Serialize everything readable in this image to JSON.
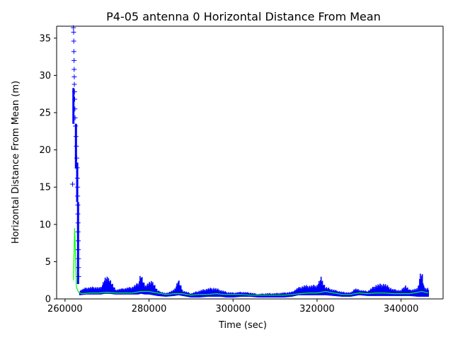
{
  "chart_data": {
    "type": "scatter",
    "title": "P4-05 antenna 0 Horizontal Distance From Mean",
    "xlabel": "Time (sec)",
    "ylabel": "Horizontal Distance From Mean (m)",
    "xlim": [
      258000,
      350000
    ],
    "ylim": [
      0,
      36.6
    ],
    "xticks": [
      260000,
      280000,
      300000,
      320000,
      340000
    ],
    "xtick_labels": [
      "260000",
      "280000",
      "300000",
      "320000",
      "340000"
    ],
    "yticks": [
      0,
      5,
      10,
      15,
      20,
      25,
      30,
      35
    ],
    "ytick_labels": [
      "0",
      "5",
      "10",
      "15",
      "20",
      "25",
      "30",
      "35"
    ],
    "grid": false,
    "series": [
      {
        "name": "Horizontal distance (blue + markers)",
        "color": "#0000ff",
        "marker": "+",
        "points": [
          [
            261800,
            15.4
          ],
          [
            262000,
            36.4
          ],
          [
            262050,
            35.8
          ],
          [
            262080,
            34.6
          ],
          [
            262100,
            33.2
          ],
          [
            262150,
            32.0
          ],
          [
            262180,
            30.8
          ],
          [
            262200,
            29.8
          ],
          [
            262220,
            28.8
          ],
          [
            262260,
            27.8
          ],
          [
            262300,
            26.8
          ],
          [
            262350,
            25.5
          ],
          [
            262400,
            24.3
          ],
          [
            262500,
            23.2
          ],
          [
            262600,
            21.8
          ],
          [
            262700,
            20.5
          ],
          [
            262800,
            18.9
          ],
          [
            262900,
            17.6
          ],
          [
            262950,
            16.2
          ],
          [
            263000,
            15.0
          ],
          [
            263000,
            13.8
          ],
          [
            263050,
            12.6
          ],
          [
            263050,
            11.4
          ],
          [
            263100,
            10.2
          ],
          [
            263100,
            9.0
          ],
          [
            263150,
            7.8
          ],
          [
            263150,
            6.6
          ],
          [
            263200,
            5.4
          ],
          [
            263200,
            4.2
          ],
          [
            263250,
            3.0
          ]
        ],
        "band": {
          "x": [
            263500,
            265000,
            267000,
            268500,
            269500,
            270500,
            272000,
            274000,
            276000,
            277500,
            278000,
            279000,
            280000,
            281000,
            282000,
            284000,
            286000,
            287000,
            288000,
            289000,
            290000,
            292000,
            294000,
            295500,
            297000,
            298500,
            300000,
            302000,
            304000,
            306000,
            308000,
            310000,
            312000,
            314000,
            315500,
            317000,
            318500,
            320000,
            321000,
            322000,
            324000,
            326000,
            328000,
            329000,
            330000,
            332000,
            334000,
            336000,
            338000,
            340000,
            341000,
            342000,
            344000,
            344500,
            345000,
            345500,
            346500
          ],
          "low": [
            0.5,
            0.6,
            0.6,
            0.6,
            0.7,
            0.7,
            0.6,
            0.6,
            0.6,
            0.6,
            0.7,
            0.6,
            0.6,
            0.5,
            0.4,
            0.3,
            0.4,
            0.5,
            0.4,
            0.3,
            0.2,
            0.2,
            0.3,
            0.3,
            0.3,
            0.2,
            0.2,
            0.3,
            0.3,
            0.2,
            0.2,
            0.2,
            0.2,
            0.3,
            0.5,
            0.5,
            0.5,
            0.5,
            0.5,
            0.5,
            0.4,
            0.3,
            0.3,
            0.4,
            0.5,
            0.4,
            0.4,
            0.4,
            0.4,
            0.4,
            0.4,
            0.4,
            0.3,
            0.3,
            0.3,
            0.3,
            0.3
          ],
          "high": [
            1.2,
            1.6,
            1.7,
            1.6,
            3.0,
            3.1,
            1.3,
            1.5,
            1.7,
            2.3,
            3.7,
            1.9,
            2.4,
            2.5,
            1.2,
            0.8,
            1.3,
            2.8,
            1.2,
            1.0,
            0.8,
            1.2,
            1.5,
            1.6,
            1.3,
            1.0,
            0.9,
            1.0,
            0.9,
            0.7,
            0.8,
            0.8,
            0.9,
            1.0,
            1.6,
            1.9,
            1.9,
            2.0,
            3.1,
            1.7,
            1.3,
            1.0,
            0.9,
            1.5,
            1.3,
            1.1,
            2.0,
            2.2,
            1.4,
            1.2,
            2.0,
            1.3,
            1.5,
            3.7,
            3.8,
            1.6,
            1.6
          ]
        }
      },
      {
        "name": "Running statistic (green line)",
        "color": "#00ff00",
        "marker": "line",
        "x": [
          262000,
          262300,
          262700,
          263200,
          264000,
          266000,
          268000,
          270000,
          272000,
          274000,
          276000,
          278000,
          280000,
          282000,
          284000,
          286000,
          288000,
          290000,
          292000,
          294000,
          296000,
          298000,
          300000,
          302000,
          304000,
          306000,
          308000,
          310000,
          312000,
          314000,
          316000,
          318000,
          320000,
          322000,
          324000,
          326000,
          328000,
          330000,
          332000,
          334000,
          336000,
          338000,
          340000,
          342000,
          344000,
          345000,
          346500
        ],
        "values": [
          2.5,
          9.5,
          1.6,
          0.9,
          0.7,
          0.8,
          0.8,
          0.9,
          0.8,
          0.8,
          0.8,
          1.0,
          1.0,
          0.8,
          0.6,
          0.7,
          0.7,
          0.5,
          0.6,
          0.6,
          0.7,
          0.6,
          0.6,
          0.6,
          0.5,
          0.5,
          0.5,
          0.5,
          0.5,
          0.6,
          0.7,
          0.8,
          0.8,
          1.0,
          0.8,
          0.6,
          0.6,
          0.8,
          0.7,
          0.8,
          0.8,
          0.7,
          0.7,
          0.7,
          0.9,
          1.0,
          0.8
        ]
      }
    ]
  }
}
